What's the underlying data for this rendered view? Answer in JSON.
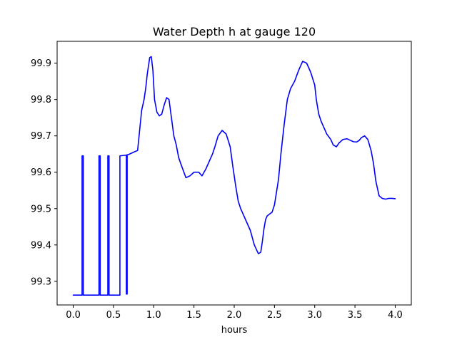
{
  "chart_data": {
    "type": "line",
    "title": "Water Depth h at gauge 120",
    "xlabel": "hours",
    "ylabel": "",
    "xlim": [
      -0.2,
      4.2
    ],
    "ylim": [
      99.235,
      99.96
    ],
    "xticks": [
      0.0,
      0.5,
      1.0,
      1.5,
      2.0,
      2.5,
      3.0,
      3.5,
      4.0
    ],
    "xtick_labels": [
      "0.0",
      "0.5",
      "1.0",
      "1.5",
      "2.0",
      "2.5",
      "3.0",
      "3.5",
      "4.0"
    ],
    "yticks": [
      99.3,
      99.4,
      99.5,
      99.6,
      99.7,
      99.8,
      99.9
    ],
    "ytick_labels": [
      "99.3",
      "99.4",
      "99.5",
      "99.6",
      "99.7",
      "99.8",
      "99.9"
    ],
    "grid": false,
    "series": [
      {
        "color": "#0000ff",
        "x": [
          0.0,
          0.11,
          0.11,
          0.125,
          0.125,
          0.32,
          0.32,
          0.335,
          0.335,
          0.43,
          0.43,
          0.445,
          0.445,
          0.58,
          0.58,
          0.66,
          0.66,
          0.67,
          0.67,
          0.68,
          0.68,
          0.75,
          0.8,
          0.85,
          0.88,
          0.9,
          0.92,
          0.95,
          0.97,
          0.99,
          1.01,
          1.04,
          1.07,
          1.1,
          1.13,
          1.16,
          1.19,
          1.22,
          1.25,
          1.28,
          1.31,
          1.35,
          1.4,
          1.45,
          1.5,
          1.53,
          1.56,
          1.6,
          1.65,
          1.7,
          1.73,
          1.76,
          1.8,
          1.85,
          1.9,
          1.95,
          1.98,
          2.02,
          2.05,
          2.08,
          2.12,
          2.15,
          2.2,
          2.25,
          2.3,
          2.33,
          2.35,
          2.37,
          2.39,
          2.41,
          2.44,
          2.47,
          2.5,
          2.55,
          2.58,
          2.62,
          2.66,
          2.7,
          2.75,
          2.8,
          2.85,
          2.9,
          2.95,
          3.0,
          3.02,
          3.05,
          3.08,
          3.12,
          3.15,
          3.2,
          3.23,
          3.27,
          3.3,
          3.35,
          3.4,
          3.45,
          3.48,
          3.52,
          3.55,
          3.58,
          3.62,
          3.66,
          3.7,
          3.73,
          3.76,
          3.8,
          3.84,
          3.88,
          3.92,
          3.96,
          4.0
        ],
        "y": [
          99.262,
          99.262,
          99.645,
          99.645,
          99.262,
          99.262,
          99.645,
          99.645,
          99.262,
          99.262,
          99.645,
          99.645,
          99.262,
          99.262,
          99.645,
          99.647,
          99.265,
          99.265,
          99.648,
          99.648,
          99.648,
          99.655,
          99.66,
          99.77,
          99.8,
          99.83,
          99.87,
          99.915,
          99.918,
          99.88,
          99.8,
          99.765,
          99.755,
          99.76,
          99.785,
          99.805,
          99.8,
          99.75,
          99.7,
          99.675,
          99.64,
          99.615,
          99.585,
          99.59,
          99.6,
          99.6,
          99.6,
          99.59,
          99.61,
          99.635,
          99.65,
          99.67,
          99.7,
          99.715,
          99.705,
          99.67,
          99.62,
          99.56,
          99.52,
          99.5,
          99.48,
          99.465,
          99.44,
          99.4,
          99.376,
          99.38,
          99.41,
          99.445,
          99.47,
          99.48,
          99.485,
          99.49,
          99.51,
          99.58,
          99.65,
          99.73,
          99.8,
          99.83,
          99.85,
          99.88,
          99.905,
          99.9,
          99.875,
          99.84,
          99.8,
          99.76,
          99.74,
          99.72,
          99.705,
          99.69,
          99.675,
          99.67,
          99.68,
          99.69,
          99.692,
          99.687,
          99.684,
          99.683,
          99.687,
          99.695,
          99.7,
          99.69,
          99.66,
          99.625,
          99.575,
          99.535,
          99.528,
          99.526,
          99.528,
          99.528,
          99.527
        ]
      }
    ]
  }
}
